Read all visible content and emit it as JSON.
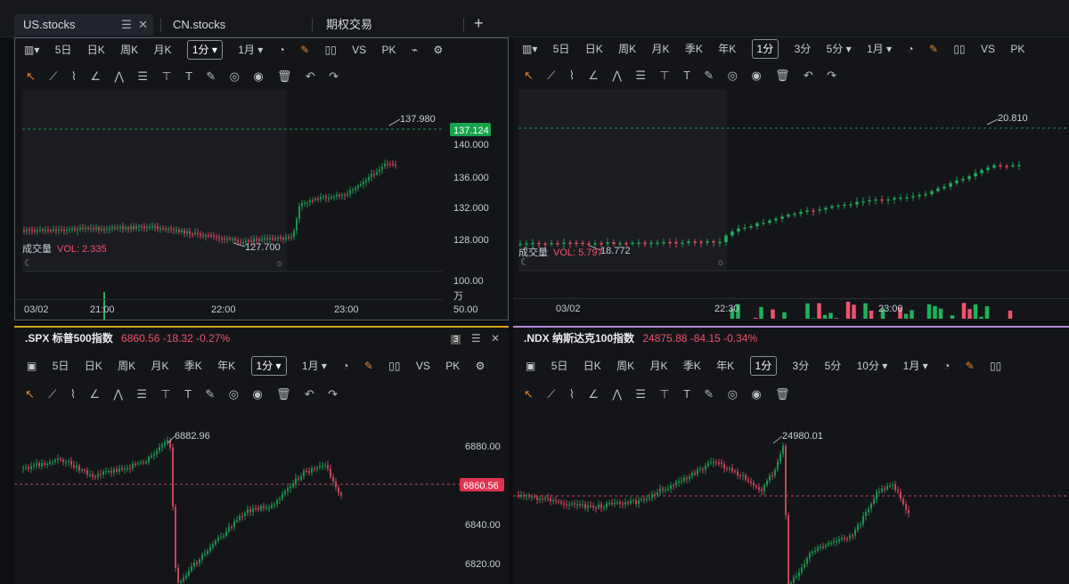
{
  "tabs": [
    {
      "label": "US.stocks",
      "active": true
    },
    {
      "label": "CN.stocks",
      "active": false
    },
    {
      "label": "期权交易",
      "active": false
    }
  ],
  "tab_add": "+",
  "panes": {
    "tl": {
      "toolbar": [
        "5日",
        "日K",
        "周K",
        "月K",
        "1分 ▾",
        "1月 ▾",
        "VS",
        "PK"
      ],
      "price_ticks": [
        "140.000",
        "136.000",
        "132.000",
        "128.000"
      ],
      "current_price": "137.124",
      "high_label": "137.980",
      "low_label": "127.700",
      "vol_label": "成交量",
      "vol_value": "VOL: 2.335",
      "vol_ticks": [
        "100.00",
        "50.00",
        "万"
      ],
      "time_ticks": [
        "03/02",
        "21:00",
        "22:00",
        "23:00"
      ]
    },
    "tr": {
      "toolbar": [
        "5日",
        "日K",
        "周K",
        "月K",
        "季K",
        "年K",
        "1分",
        "3分",
        "5分 ▾",
        "1月 ▾",
        "VS",
        "PK"
      ],
      "high_label": "20.810",
      "low_label": "18.772",
      "vol_label": "成交量",
      "vol_value": "VOL: 5.797",
      "time_ticks": [
        "03/02",
        "22:30",
        "23:00"
      ]
    },
    "bl": {
      "symbol": ".SPX 标普500指数",
      "quote": "6860.56 -18.32 -0.27%",
      "badge": "3",
      "toolbar": [
        "5日",
        "日K",
        "周K",
        "月K",
        "季K",
        "年K",
        "1分 ▾",
        "1月 ▾",
        "VS",
        "PK"
      ],
      "price_ticks": [
        "6880.00",
        "6860.56",
        "6840.00",
        "6820.00"
      ],
      "current_price": "6860.56",
      "high_label": "6882.96"
    },
    "br": {
      "symbol": ".NDX 纳斯达克100指数",
      "quote": "24875.88 -84.15 -0.34%",
      "toolbar": [
        "5日",
        "日K",
        "周K",
        "月K",
        "季K",
        "年K",
        "1分",
        "3分",
        "5分",
        "10分 ▾",
        "1月 ▾"
      ],
      "high_label": "24980.01"
    }
  },
  "draw_tools": [
    "↖",
    "⟋",
    "⌇",
    "∠",
    "⋀",
    "☰",
    "⊤",
    "T",
    "✎",
    "◎",
    "◉",
    "🗑",
    "↶",
    "↷"
  ],
  "colors": {
    "up": "#1fb25a",
    "down": "#f0516a",
    "accent": "#e8842a",
    "price_tag_up": "#17a34a",
    "price_tag_down": "#e0334f"
  }
}
